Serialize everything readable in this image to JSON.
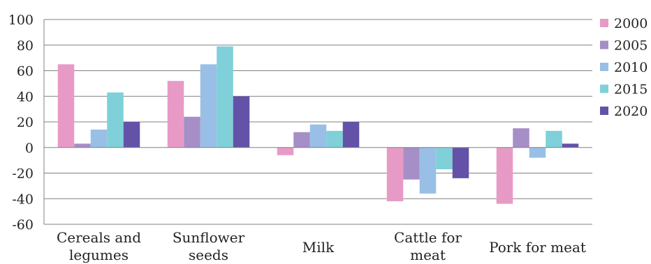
{
  "chart_data": {
    "type": "bar",
    "title": "",
    "xlabel": "",
    "ylabel": "",
    "ylim": [
      -60,
      100
    ],
    "yticks": [
      100,
      80,
      60,
      40,
      20,
      0,
      -20,
      -40,
      -60
    ],
    "ytick_labels": [
      "100",
      "80",
      "60",
      "40",
      "20",
      "0",
      "-20",
      "-40",
      "-60"
    ],
    "grid": true,
    "legend_position": "right",
    "categories": [
      [
        "Cereals and",
        "legumes"
      ],
      [
        "Sunflower",
        "seeds"
      ],
      [
        "Milk"
      ],
      [
        "Cattle for",
        "meat"
      ],
      [
        "Pork for meat"
      ]
    ],
    "series": [
      {
        "name": "2000",
        "color": "#e89ac6",
        "values": [
          65,
          52,
          -6,
          -42,
          -44
        ]
      },
      {
        "name": "2005",
        "color": "#a68ec6",
        "values": [
          3,
          24,
          12,
          -25,
          15
        ]
      },
      {
        "name": "2010",
        "color": "#99bfe6",
        "values": [
          14,
          65,
          18,
          -36,
          -8
        ]
      },
      {
        "name": "2015",
        "color": "#7fd0d8",
        "values": [
          43,
          79,
          13,
          -17,
          13
        ]
      },
      {
        "name": "2020",
        "color": "#6352a8",
        "values": [
          20,
          40,
          20,
          -24,
          3
        ]
      }
    ]
  }
}
